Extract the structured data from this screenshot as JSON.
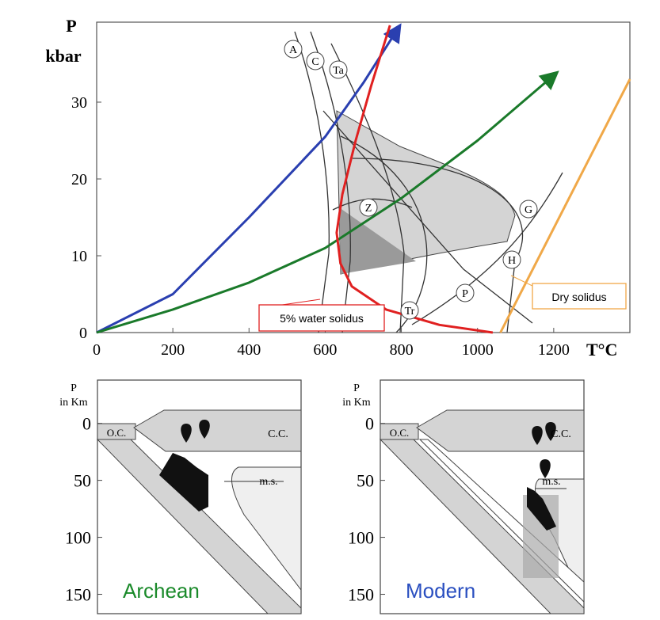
{
  "chart_data": {
    "type": "line",
    "x_label": "T°C",
    "y_label_lines": [
      "P",
      "kbar"
    ],
    "xlim": [
      0,
      1400
    ],
    "ylim": [
      0,
      40
    ],
    "xticks": [
      0,
      200,
      400,
      600,
      800,
      1000,
      1200
    ],
    "yticks": [
      0,
      10,
      20,
      30
    ],
    "series": [
      {
        "color": "#2a3fb0",
        "arrow": true,
        "x": [
          0,
          200,
          400,
          600,
          700,
          790
        ],
        "values": [
          0,
          5,
          15,
          25.5,
          32.5,
          39.5
        ]
      },
      {
        "color": "#1a7a2a",
        "arrow": true,
        "x": [
          0,
          200,
          400,
          600,
          800,
          1000,
          1200
        ],
        "values": [
          0,
          3,
          6.5,
          11,
          17.5,
          25,
          33.5
        ]
      },
      {
        "name": "5% water solidus",
        "color": "#e02020",
        "arrow": false,
        "x": [
          1040,
          900,
          760,
          670,
          640,
          630,
          645,
          680,
          720,
          745,
          770
        ],
        "values": [
          0,
          1,
          3,
          6,
          9,
          13,
          18,
          25,
          32,
          36,
          40
        ]
      },
      {
        "name": "Dry solidus",
        "color": "#f0a848",
        "arrow": false,
        "x": [
          1060,
          1400
        ],
        "values": [
          0,
          33
        ]
      }
    ],
    "curve_labels": [
      "A",
      "C",
      "Ta",
      "Z",
      "G",
      "H",
      "P",
      "Tr"
    ]
  },
  "panels": [
    {
      "title": "Archean",
      "title_color": "#1a8a2a",
      "y_label_lines": [
        "P",
        "in Km"
      ],
      "ylim": [
        -38,
        167
      ],
      "yticks": [
        0,
        50,
        100,
        150
      ],
      "labels": [
        "O.C.",
        "C.C.",
        "m.s."
      ]
    },
    {
      "title": "Modern",
      "title_color": "#2a4fc0",
      "y_label_lines": [
        "P",
        "in Km"
      ],
      "ylim": [
        -38,
        167
      ],
      "yticks": [
        0,
        50,
        100,
        150
      ],
      "labels": [
        "O.C.",
        "C.C.",
        "m.s."
      ]
    }
  ]
}
